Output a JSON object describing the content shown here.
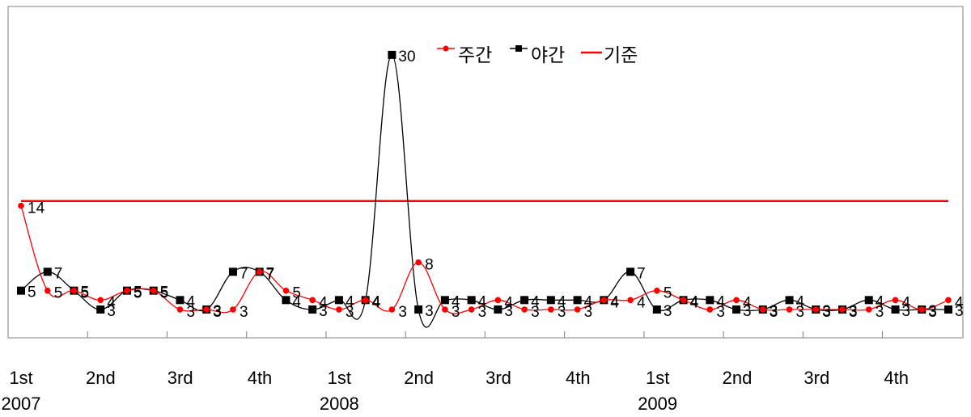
{
  "chart_data": {
    "type": "line",
    "title": "",
    "xlabel": "",
    "ylabel": "",
    "ylim": [
      0,
      33
    ],
    "grid": false,
    "legend_position": "top",
    "quarter_labels": [
      "1st",
      "2nd",
      "3rd",
      "4th",
      "1st",
      "2nd",
      "3rd",
      "4th",
      "1st",
      "2nd",
      "3rd",
      "4th"
    ],
    "year_labels": [
      "2007",
      "2008",
      "2009"
    ],
    "x": [
      1,
      2,
      3,
      4,
      5,
      6,
      7,
      8,
      9,
      10,
      11,
      12,
      13,
      14,
      15,
      16,
      17,
      18,
      19,
      20,
      21,
      22,
      23,
      24,
      25,
      26,
      27,
      28,
      29,
      30,
      31,
      32,
      33,
      34,
      35,
      36
    ],
    "series": [
      {
        "name": "주간",
        "color": "#ff0000",
        "marker": "circle",
        "values": [
          14,
          5,
          5,
          4,
          5,
          5,
          3,
          3,
          3,
          7,
          5,
          4,
          3,
          4,
          3,
          8,
          3,
          3,
          4,
          3,
          3,
          3,
          4,
          4,
          5,
          4,
          3,
          4,
          3,
          3,
          3,
          3,
          3,
          4,
          3,
          4
        ]
      },
      {
        "name": "야간",
        "color": "#000000",
        "marker": "square",
        "values": [
          5,
          7,
          5,
          3,
          5,
          5,
          4,
          3,
          7,
          7,
          4,
          3,
          4,
          4,
          30,
          3,
          4,
          4,
          3,
          4,
          4,
          4,
          4,
          7,
          3,
          4,
          4,
          3,
          3,
          4,
          3,
          3,
          4,
          3,
          3,
          3
        ]
      },
      {
        "name": "기준",
        "color": "#ff0000",
        "marker": "none",
        "type": "reference",
        "value": 14.5
      }
    ],
    "data_labels": {
      "주간": [
        "14",
        "5",
        "5",
        "4",
        "5",
        "5",
        "3",
        "3",
        "3",
        "7",
        "5",
        "4",
        "3",
        "4",
        "3",
        "8",
        "3",
        "3",
        "4",
        "3",
        "3",
        "3",
        "4",
        "4",
        "5",
        "4",
        "3",
        "4",
        "3",
        "3",
        "3",
        "3",
        "3",
        "4",
        "3",
        "4"
      ],
      "야간": [
        "5",
        "7",
        "5",
        "3",
        "5",
        "5",
        "4",
        "3",
        "7",
        "7",
        "4",
        "3",
        "4",
        "4",
        "30",
        "3",
        "4",
        "4",
        "3",
        "4",
        "4",
        "4",
        "4",
        "7",
        "3",
        "4",
        "4",
        "3",
        "3",
        "4",
        "3",
        "3",
        "4",
        "3",
        "3",
        "3"
      ]
    }
  }
}
